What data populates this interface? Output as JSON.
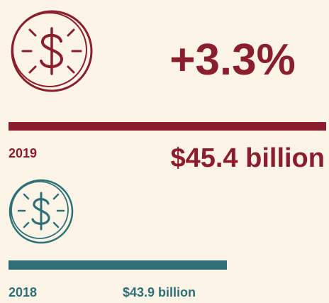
{
  "headline": {
    "change": "+3.3%"
  },
  "items": [
    {
      "year": "2019",
      "amount": "$45.4 billion"
    },
    {
      "year": "2018",
      "amount": "$43.9 billion"
    }
  ]
}
